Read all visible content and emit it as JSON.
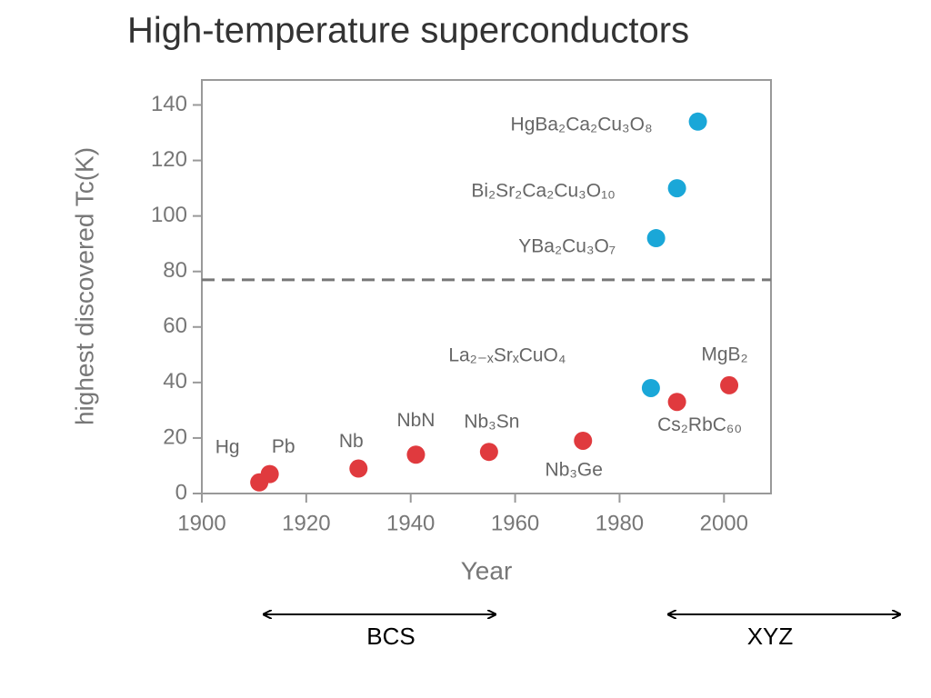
{
  "chart_data": {
    "type": "scatter",
    "title": "High-temperature superconductors",
    "xlabel": "Year",
    "ylabel": "highest discovered Tc(K)",
    "xlim": [
      1900,
      2009
    ],
    "ylim": [
      0,
      149
    ],
    "xticks": [
      1900,
      1920,
      1940,
      1960,
      1980,
      2000
    ],
    "yticks": [
      0,
      20,
      40,
      60,
      80,
      100,
      120,
      140
    ],
    "grid": false,
    "reference_line": 77,
    "series": [
      {
        "color": "#e03a3e",
        "x": [
          1911,
          1913,
          1930,
          1941,
          1955,
          1973,
          1991,
          2001
        ],
        "values": [
          4,
          7,
          9,
          14,
          15,
          19,
          33,
          39
        ],
        "labels": [
          "Hg",
          "Pb",
          "Nb",
          "NbN",
          "Nb₃Sn",
          "Nb₃Ge",
          "Cs₂RbC₆₀",
          "MgB₂"
        ]
      },
      {
        "color": "#1aa7d8",
        "x": [
          1986,
          1987,
          1991,
          1995
        ],
        "values": [
          38,
          92,
          110,
          134
        ],
        "labels": [
          "La₂₋ₓSrₓCuO₄",
          "YBa₂Cu₃O₇",
          "Bi₂Sr₂Ca₂Cu₃O₁₀",
          "HgBa₂Ca₂Cu₃O₈"
        ]
      }
    ]
  },
  "spans": [
    {
      "label": "BCS"
    },
    {
      "label": "XYZ"
    }
  ]
}
